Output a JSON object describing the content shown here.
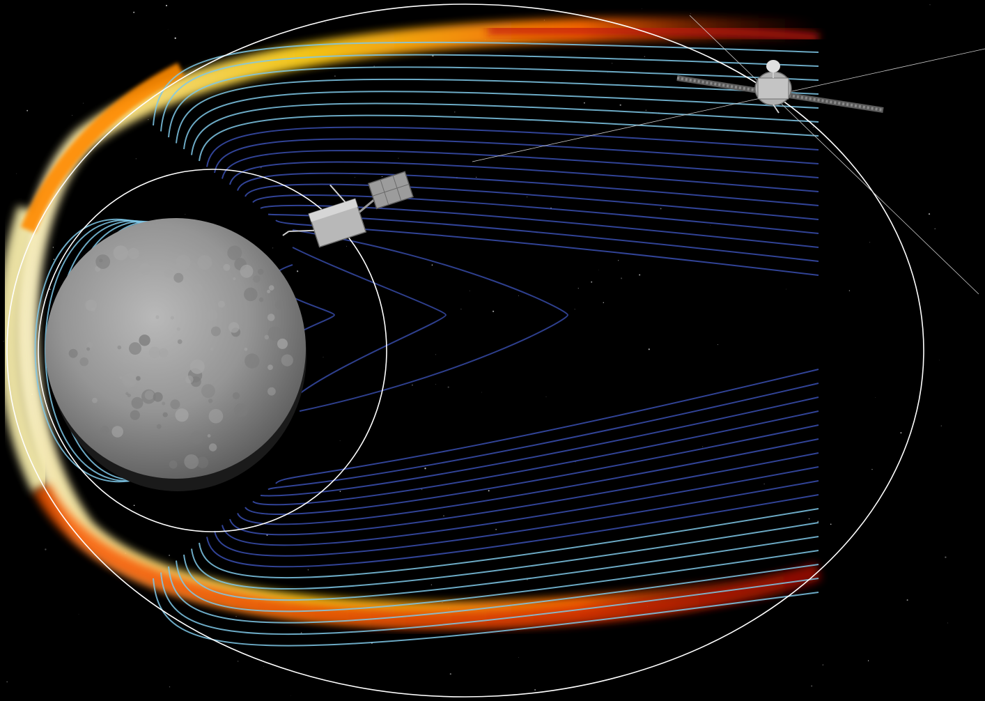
{
  "scene": {
    "background_color": "#000000",
    "planet_color": "#8c8c8c",
    "field_line_color_inner": "#7fc8e8",
    "field_line_color_outer": "#3a4fb0",
    "bow_shock_colors": [
      "#fff8c0",
      "#ffd400",
      "#ff7a00",
      "#c81e00"
    ],
    "orbit_line_color": "#ffffff",
    "spacecraft_color": "#c8c8c8"
  }
}
